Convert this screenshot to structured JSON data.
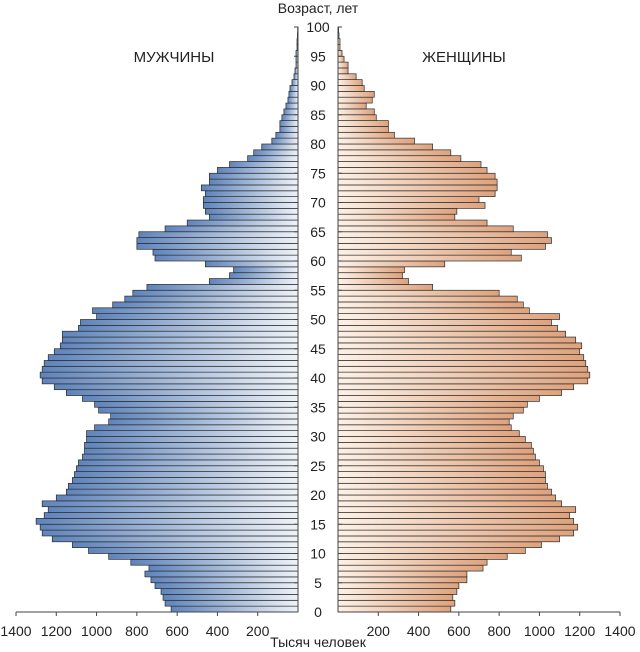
{
  "chart_data": {
    "type": "population-pyramid",
    "title": "",
    "age_axis_label": "Возраст, лет",
    "xlabel": "Тысяч человек",
    "left_label": "МУЖЧИНЫ",
    "right_label": "ЖЕНЩИНЫ",
    "age_range": [
      0,
      100
    ],
    "age_ticks": [
      0,
      5,
      10,
      15,
      20,
      25,
      30,
      35,
      40,
      45,
      50,
      55,
      60,
      65,
      70,
      75,
      80,
      85,
      90,
      95,
      100
    ],
    "x_ticks_left": [
      "1400",
      "1200",
      "1000",
      "800",
      "600",
      "400",
      "200"
    ],
    "x_ticks_right": [
      "200",
      "400",
      "600",
      "800",
      "1000",
      "1200",
      "1400"
    ],
    "x_tick_values": [
      1400,
      1200,
      1000,
      800,
      600,
      400,
      200
    ],
    "xlim": [
      0,
      1400
    ],
    "colors": {
      "male": "#5f84bb",
      "male_light": "#eef2f8",
      "female": "#dea27d",
      "female_light": "#fdf1e6",
      "stroke": "#2b2b2b"
    },
    "ages": [
      0,
      1,
      2,
      3,
      4,
      5,
      6,
      7,
      8,
      9,
      10,
      11,
      12,
      13,
      14,
      15,
      16,
      17,
      18,
      19,
      20,
      21,
      22,
      23,
      24,
      25,
      26,
      27,
      28,
      29,
      30,
      31,
      32,
      33,
      34,
      35,
      36,
      37,
      38,
      39,
      40,
      41,
      42,
      43,
      44,
      45,
      46,
      47,
      48,
      49,
      50,
      51,
      52,
      53,
      54,
      55,
      56,
      57,
      58,
      59,
      60,
      61,
      62,
      63,
      64,
      65,
      66,
      67,
      68,
      69,
      70,
      71,
      72,
      73,
      74,
      75,
      76,
      77,
      78,
      79,
      80,
      81,
      82,
      83,
      84,
      85,
      86,
      87,
      88,
      89,
      90,
      91,
      92,
      93,
      94,
      95,
      96,
      97,
      98,
      99
    ],
    "series": [
      {
        "name": "МУЖЧИНЫ",
        "values": [
          630,
          660,
          670,
          680,
          710,
          730,
          760,
          740,
          830,
          940,
          1040,
          1120,
          1220,
          1270,
          1280,
          1300,
          1260,
          1240,
          1270,
          1200,
          1150,
          1140,
          1120,
          1110,
          1100,
          1090,
          1070,
          1060,
          1060,
          1050,
          1050,
          1010,
          940,
          930,
          990,
          1010,
          1070,
          1150,
          1210,
          1270,
          1280,
          1270,
          1260,
          1240,
          1210,
          1180,
          1170,
          1170,
          1090,
          1080,
          1000,
          1020,
          920,
          860,
          820,
          750,
          440,
          340,
          320,
          460,
          710,
          720,
          800,
          800,
          790,
          660,
          550,
          440,
          460,
          470,
          470,
          460,
          480,
          440,
          440,
          400,
          340,
          250,
          220,
          180,
          130,
          110,
          90,
          90,
          80,
          70,
          60,
          50,
          45,
          40,
          30,
          20,
          15,
          10,
          10,
          10,
          5,
          5,
          3,
          2
        ]
      },
      {
        "name": "ЖЕНЩИНЫ",
        "values": [
          560,
          580,
          570,
          590,
          600,
          640,
          640,
          720,
          740,
          840,
          930,
          1010,
          1100,
          1170,
          1190,
          1170,
          1150,
          1180,
          1110,
          1080,
          1060,
          1040,
          1030,
          1030,
          1020,
          1000,
          980,
          970,
          960,
          930,
          900,
          860,
          850,
          870,
          920,
          940,
          1000,
          1110,
          1170,
          1240,
          1250,
          1240,
          1230,
          1220,
          1200,
          1210,
          1180,
          1130,
          1090,
          1060,
          1100,
          950,
          920,
          890,
          800,
          470,
          350,
          320,
          330,
          530,
          910,
          860,
          1030,
          1060,
          1040,
          870,
          740,
          580,
          590,
          730,
          700,
          780,
          790,
          790,
          780,
          740,
          710,
          610,
          560,
          470,
          380,
          280,
          250,
          250,
          190,
          180,
          140,
          170,
          180,
          130,
          120,
          90,
          50,
          50,
          30,
          20,
          10,
          10,
          5,
          3
        ]
      }
    ]
  }
}
